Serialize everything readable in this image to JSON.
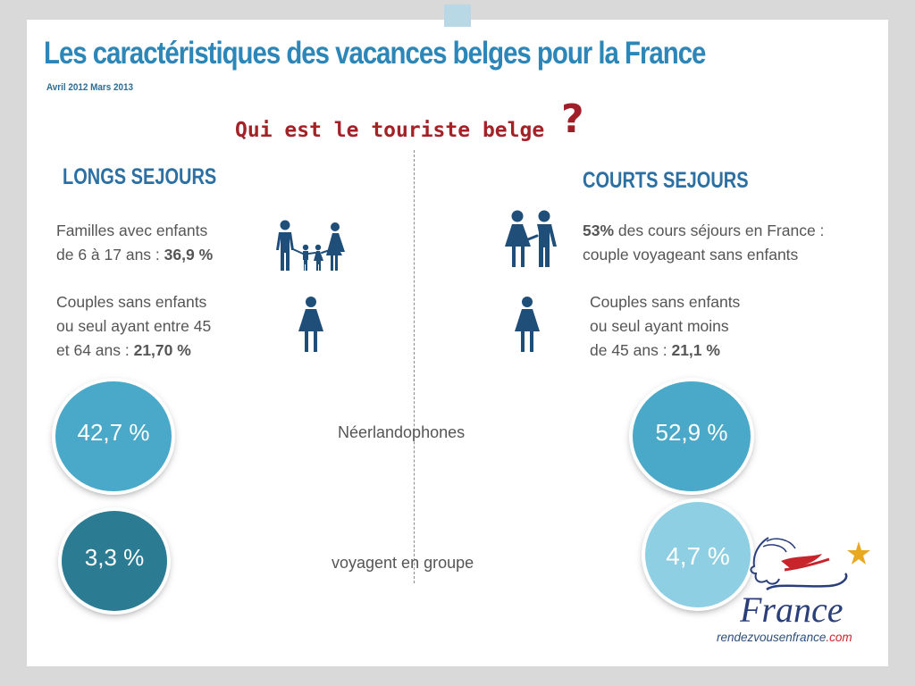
{
  "header": {
    "title": "Les caractéristiques des vacances belges pour la France",
    "subtitle": "Avril 2012  Mars 2013",
    "question": "Qui est le touriste belge",
    "question_mark": "?"
  },
  "left": {
    "heading": "LONGS SEJOURS",
    "families": {
      "line1": "Familles avec enfants",
      "line2_prefix": "de 6 à 17 ans : ",
      "value": "36,9 %"
    },
    "couples": {
      "line1": "Couples sans enfants",
      "line2": "ou seul ayant  entre 45",
      "line3_prefix": "et 64 ans : ",
      "value": "21,70 %"
    },
    "dutch_speakers": "42,7 %",
    "groups": "3,3 %"
  },
  "right": {
    "heading": "COURTS SEJOURS",
    "couples_no_kids": {
      "value": "53%",
      "line1_suffix": " des cours séjours en France :",
      "line2": "couple voyageant sans enfants"
    },
    "young": {
      "line1": "Couples sans enfants",
      "line2": "ou seul  ayant moins",
      "line3_prefix": "de 45 ans : ",
      "value": "21,1 %"
    },
    "dutch_speakers": "52,9 %",
    "groups": "4,7 %"
  },
  "labels": {
    "dutch": "Néerlandophones",
    "groups": "voyagent en groupe"
  },
  "footer": {
    "logo_text": "France",
    "site_main": "rendezvousenfrance",
    "site_tld": ".com"
  },
  "colors": {
    "title": "#2c86b8",
    "accent_red": "#a22228",
    "icon": "#1f4e79",
    "circle_main": "#4aa8c8",
    "circle_dark": "#2b7c93",
    "circle_light": "#8ecfe3"
  }
}
